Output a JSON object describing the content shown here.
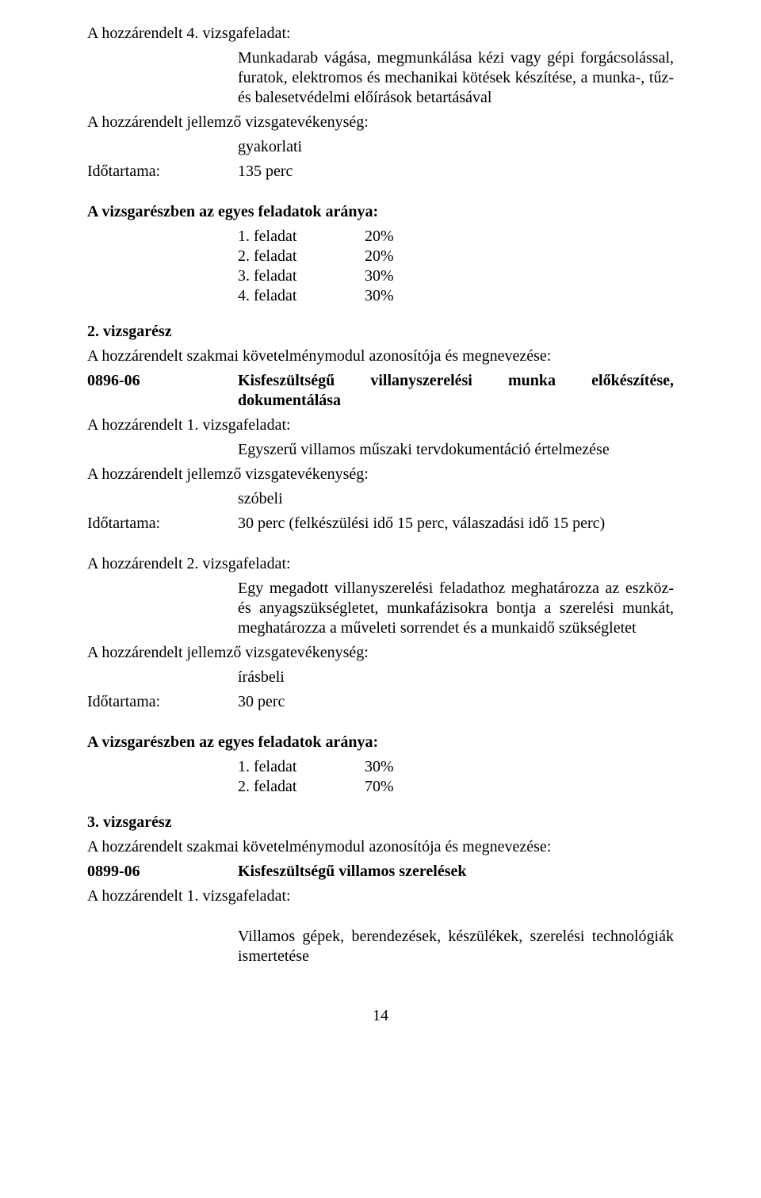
{
  "s1": {
    "h1": "A hozzárendelt 4. vizsgafeladat:",
    "desc": "Munkadarab vágása, megmunkálása kézi vagy gépi forgácsolással, furatok, elektromos és mechanikai kötések készítése, a munka-, tűz- és balesetvédelmi előírások betartásával",
    "jv": "A hozzárendelt jellemző vizsgatevékenység:",
    "jv_val": "gyakorlati",
    "idot_label": "Időtartama:",
    "idot_val": "135 perc",
    "aranya_title": "A vizsgarészben az egyes feladatok aránya:",
    "feladatok": [
      {
        "label": "1. feladat",
        "val": "20%"
      },
      {
        "label": "2. feladat",
        "val": "20%"
      },
      {
        "label": "3. feladat",
        "val": "30%"
      },
      {
        "label": "4. feladat",
        "val": "30%"
      }
    ]
  },
  "s2": {
    "title": "2. vizsgarész",
    "modul_intro": "A hozzárendelt szakmai követelménymodul azonosítója és megnevezése:",
    "mod_code": "0896-06",
    "mod_title": "Kisfeszültségű villanyszerelési munka előkészítése, dokumentálása",
    "h1": "A hozzárendelt 1. vizsgafeladat:",
    "h1_desc": "Egyszerű villamos műszaki tervdokumentáció értelmezése",
    "jv": "A hozzárendelt jellemző vizsgatevékenység:",
    "jv_val": "szóbeli",
    "idot_label": "Időtartama:",
    "idot_val": "30 perc (felkészülési idő 15 perc, válaszadási idő 15 perc)",
    "h2": "A hozzárendelt 2. vizsgafeladat:",
    "h2_desc": "Egy megadott villanyszerelési feladathoz meghatározza az eszköz- és anyagszükségletet, munkafázisokra bontja a szerelési munkát, meghatározza a műveleti sorrendet és a munkaidő szükségletet",
    "jv2": "A hozzárendelt jellemző vizsgatevékenység:",
    "jv2_val": "írásbeli",
    "idot2_label": "Időtartama:",
    "idot2_val": "30 perc",
    "aranya_title": "A vizsgarészben az egyes feladatok aránya:",
    "feladatok": [
      {
        "label": "1. feladat",
        "val": "30%"
      },
      {
        "label": "2. feladat",
        "val": "70%"
      }
    ]
  },
  "s3": {
    "title": "3. vizsgarész",
    "modul_intro": "A hozzárendelt szakmai követelménymodul azonosítója és megnevezése:",
    "mod_code": "0899-06",
    "mod_title": "Kisfeszültségű villamos szerelések",
    "h1": "A hozzárendelt 1. vizsgafeladat:",
    "h1_desc": "Villamos gépek, berendezések, készülékek, szerelési technológiák ismertetése"
  },
  "page_number": "14"
}
